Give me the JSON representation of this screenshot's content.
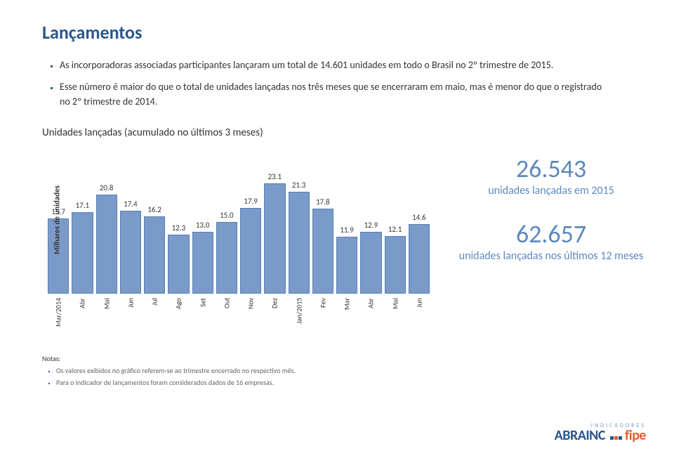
{
  "title": "Lançamentos",
  "bullets": [
    "As incorporadoras associadas participantes lançaram um total de 14.601 unidades em todo o Brasil no 2º trimestre de 2015.",
    "Esse número é maior do que o total de unidades lançadas nos três meses que se encerraram em maio, mas é menor do que o registrado no 2º trimestre de 2014."
  ],
  "subtitle": "Unidades lançadas (acumulado no últimos 3 meses)",
  "chart": {
    "type": "bar",
    "ylabel": "Milhares de unidades",
    "ymax": 25,
    "bar_color": "#7a9ac9",
    "bar_border": "#5a7fb3",
    "value_color": "#333333",
    "label_fontsize": 10,
    "value_fontsize": 11,
    "categories": [
      "Mar/2014",
      "Abr",
      "Mai",
      "Jun",
      "Jul",
      "Ago",
      "Set",
      "Out",
      "Nov",
      "Dez",
      "Jan/2015",
      "Fev",
      "Mar",
      "Abr",
      "Mai",
      "Jun"
    ],
    "values": [
      15.7,
      17.1,
      20.8,
      17.4,
      16.2,
      12.3,
      13.0,
      15.0,
      17.9,
      23.1,
      21.3,
      17.8,
      11.9,
      12.9,
      12.1,
      14.6
    ]
  },
  "stats": [
    {
      "num": "26.543",
      "desc": "unidades lançadas em 2015"
    },
    {
      "num": "62.657",
      "desc": "unidades lançadas nos últimos 12 meses"
    }
  ],
  "notes_title": "Notas:",
  "notes": [
    "Os valores exibidos no gráfico referem-se ao trimestre encerrado no respectivo mês.",
    "Para o indicador de lançamentos foram considerados dados de 16 empresas."
  ],
  "logo": {
    "line1": "INDICADORES",
    "part1": "ABRAINC",
    "part2": "fipe"
  }
}
